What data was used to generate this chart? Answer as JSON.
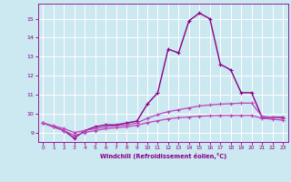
{
  "title": "",
  "xlabel": "Windchill (Refroidissement éolien,°C)",
  "ylabel": "",
  "background_color": "#cce8f0",
  "line_color": "#880088",
  "grid_color": "#ffffff",
  "xlim": [
    -0.5,
    23.5
  ],
  "ylim": [
    8.5,
    15.8
  ],
  "yticks": [
    9,
    10,
    11,
    12,
    13,
    14,
    15
  ],
  "xticks": [
    0,
    1,
    2,
    3,
    4,
    5,
    6,
    7,
    8,
    9,
    10,
    11,
    12,
    13,
    14,
    15,
    16,
    17,
    18,
    19,
    20,
    21,
    22,
    23
  ],
  "series": [
    {
      "x": [
        0,
        1,
        2,
        3,
        4,
        5,
        6,
        7,
        8,
        9,
        10,
        11,
        12,
        13,
        14,
        15,
        16,
        17,
        18,
        19,
        20,
        21,
        22,
        23
      ],
      "y": [
        9.5,
        9.3,
        9.1,
        8.7,
        9.1,
        9.3,
        9.4,
        9.4,
        9.5,
        9.6,
        10.5,
        11.1,
        13.4,
        13.2,
        14.9,
        15.3,
        15.0,
        12.6,
        12.3,
        11.1,
        11.1,
        9.8,
        9.8,
        9.8
      ],
      "color": "#880088",
      "linewidth": 1.0,
      "marker": "+"
    },
    {
      "x": [
        0,
        1,
        2,
        3,
        4,
        5,
        6,
        7,
        8,
        9,
        10,
        11,
        12,
        13,
        14,
        15,
        16,
        17,
        18,
        19,
        20,
        21,
        22,
        23
      ],
      "y": [
        9.5,
        9.35,
        9.2,
        9.0,
        9.1,
        9.2,
        9.3,
        9.35,
        9.4,
        9.5,
        9.75,
        9.95,
        10.1,
        10.2,
        10.3,
        10.4,
        10.45,
        10.5,
        10.52,
        10.55,
        10.55,
        9.85,
        9.8,
        9.75
      ],
      "color": "#bb44bb",
      "linewidth": 0.9,
      "marker": "+"
    },
    {
      "x": [
        0,
        1,
        2,
        3,
        4,
        5,
        6,
        7,
        8,
        9,
        10,
        11,
        12,
        13,
        14,
        15,
        16,
        17,
        18,
        19,
        20,
        21,
        22,
        23
      ],
      "y": [
        9.5,
        9.3,
        9.1,
        8.85,
        9.0,
        9.1,
        9.2,
        9.25,
        9.3,
        9.38,
        9.52,
        9.62,
        9.72,
        9.78,
        9.82,
        9.86,
        9.88,
        9.9,
        9.9,
        9.9,
        9.9,
        9.75,
        9.7,
        9.65
      ],
      "color": "#bb44bb",
      "linewidth": 0.9,
      "marker": "+"
    }
  ]
}
